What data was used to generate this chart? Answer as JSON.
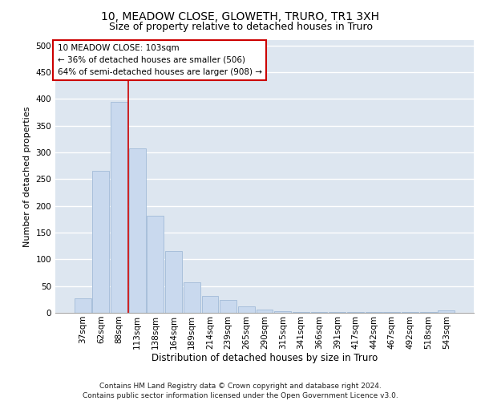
{
  "title1": "10, MEADOW CLOSE, GLOWETH, TRURO, TR1 3XH",
  "title2": "Size of property relative to detached houses in Truro",
  "xlabel": "Distribution of detached houses by size in Truro",
  "ylabel": "Number of detached properties",
  "categories": [
    "37sqm",
    "62sqm",
    "88sqm",
    "113sqm",
    "138sqm",
    "164sqm",
    "189sqm",
    "214sqm",
    "239sqm",
    "265sqm",
    "290sqm",
    "315sqm",
    "341sqm",
    "366sqm",
    "391sqm",
    "417sqm",
    "442sqm",
    "467sqm",
    "492sqm",
    "518sqm",
    "543sqm"
  ],
  "values": [
    27,
    265,
    395,
    308,
    182,
    115,
    57,
    32,
    24,
    12,
    6,
    3,
    1,
    1,
    1,
    1,
    1,
    1,
    1,
    1,
    4
  ],
  "bar_color": "#c9d9ee",
  "bar_edgecolor": "#a8c0db",
  "bar_linewidth": 0.7,
  "redline_x": 2.5,
  "redline_color": "#cc0000",
  "redline_linewidth": 1.2,
  "annotation_text": "10 MEADOW CLOSE: 103sqm\n← 36% of detached houses are smaller (506)\n64% of semi-detached houses are larger (908) →",
  "ylim": [
    0,
    510
  ],
  "yticks": [
    0,
    50,
    100,
    150,
    200,
    250,
    300,
    350,
    400,
    450,
    500
  ],
  "bg_color": "#dde6f0",
  "grid_color": "#ffffff",
  "footer": "Contains HM Land Registry data © Crown copyright and database right 2024.\nContains public sector information licensed under the Open Government Licence v3.0.",
  "title1_fontsize": 10,
  "title2_fontsize": 9,
  "xlabel_fontsize": 8.5,
  "ylabel_fontsize": 8,
  "tick_fontsize": 7.5,
  "annotation_fontsize": 7.5,
  "footer_fontsize": 6.5
}
